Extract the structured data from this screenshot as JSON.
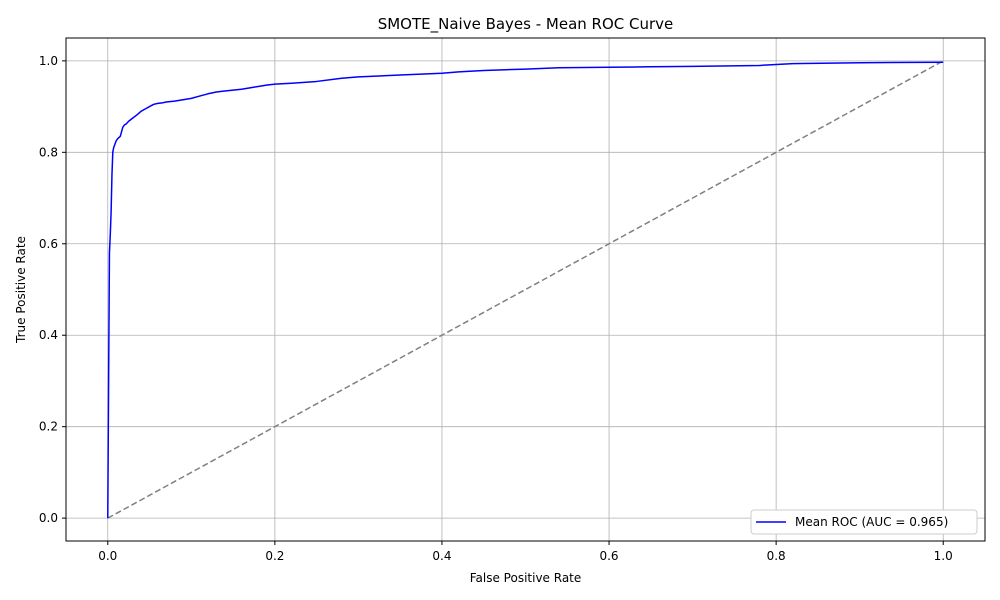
{
  "chart_data": {
    "type": "line",
    "title": "SMOTE_Naive Bayes - Mean ROC Curve",
    "xlabel": "False Positive Rate",
    "ylabel": "True Positive Rate",
    "xlim": [
      -0.05,
      1.05
    ],
    "ylim": [
      -0.05,
      1.05
    ],
    "xticks": [
      0.0,
      0.2,
      0.4,
      0.6,
      0.8,
      1.0
    ],
    "xtick_labels": [
      "0.0",
      "0.2",
      "0.4",
      "0.6",
      "0.8",
      "1.0"
    ],
    "yticks": [
      0.0,
      0.2,
      0.4,
      0.6,
      0.8,
      1.0
    ],
    "ytick_labels": [
      "0.0",
      "0.2",
      "0.4",
      "0.6",
      "0.8",
      "1.0"
    ],
    "grid": true,
    "legend_position": "lower-right",
    "series": [
      {
        "name": "Mean ROC (AUC = 0.965)",
        "color": "#0000ff",
        "style": "solid",
        "x": [
          0.0,
          0.001,
          0.002,
          0.003,
          0.004,
          0.005,
          0.006,
          0.007,
          0.008,
          0.009,
          0.01,
          0.012,
          0.015,
          0.018,
          0.02,
          0.022,
          0.025,
          0.03,
          0.035,
          0.04,
          0.045,
          0.05,
          0.055,
          0.06,
          0.065,
          0.07,
          0.08,
          0.09,
          0.1,
          0.11,
          0.12,
          0.13,
          0.14,
          0.15,
          0.16,
          0.17,
          0.18,
          0.19,
          0.2,
          0.22,
          0.25,
          0.28,
          0.3,
          0.35,
          0.4,
          0.42,
          0.45,
          0.5,
          0.54,
          0.6,
          0.65,
          0.7,
          0.78,
          0.82,
          0.9,
          1.0
        ],
        "y": [
          0.0,
          0.3,
          0.58,
          0.62,
          0.67,
          0.75,
          0.8,
          0.81,
          0.815,
          0.82,
          0.825,
          0.83,
          0.835,
          0.855,
          0.86,
          0.862,
          0.868,
          0.875,
          0.882,
          0.89,
          0.895,
          0.9,
          0.905,
          0.907,
          0.908,
          0.91,
          0.912,
          0.915,
          0.918,
          0.923,
          0.928,
          0.932,
          0.934,
          0.936,
          0.938,
          0.941,
          0.944,
          0.947,
          0.949,
          0.951,
          0.955,
          0.962,
          0.965,
          0.969,
          0.973,
          0.976,
          0.979,
          0.982,
          0.985,
          0.986,
          0.987,
          0.988,
          0.99,
          0.994,
          0.996,
          0.997
        ]
      },
      {
        "name": "",
        "color": "#808080",
        "style": "dashed",
        "x": [
          0.0,
          1.0
        ],
        "y": [
          0.0,
          1.0
        ]
      }
    ]
  }
}
